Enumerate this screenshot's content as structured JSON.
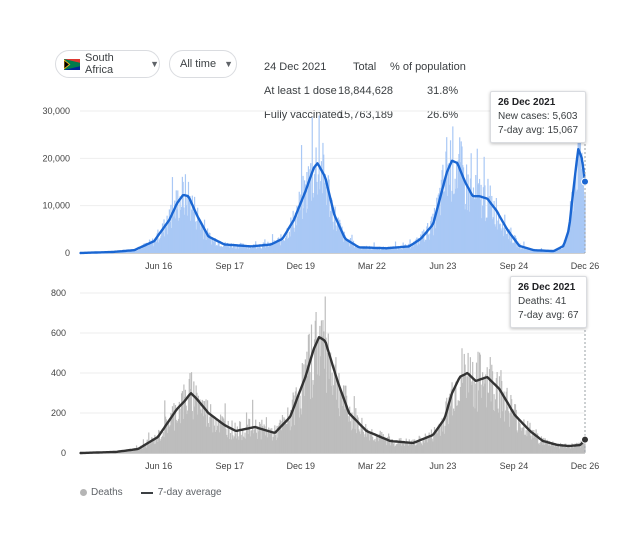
{
  "controls": {
    "country_label": "South Africa",
    "time_label": "All time",
    "flag_icon": "south-africa-flag-icon"
  },
  "stats": {
    "date": "24 Dec 2021",
    "col_total": "Total",
    "col_pct": "% of population",
    "rows": [
      {
        "label": "At least 1 dose",
        "total": "18,844,628",
        "pct": "31.8%"
      },
      {
        "label": "Fully vaccinated",
        "total": "15,763,189",
        "pct": "26.6%"
      }
    ]
  },
  "cases_tooltip": {
    "date": "26 Dec 2021",
    "line1": "New cases: 5,603",
    "line2": "7-day avg: 15,067"
  },
  "deaths_tooltip": {
    "date": "26 Dec 2021",
    "line1": "Deaths: 41",
    "line2": "7-day avg: 67"
  },
  "legend": {
    "deaths": "Deaths",
    "avg": "7-day average"
  },
  "colors": {
    "cases_line": "#1a66d2",
    "cases_fill": "#a9c8f5",
    "deaths_line": "#333333",
    "deaths_bar": "#bdbdbd"
  },
  "chart_data": [
    {
      "type": "area",
      "title": "",
      "xlabel": "",
      "ylabel": "",
      "x_ticks": [
        "Jun 16",
        "Sep 17",
        "Dec 19",
        "Mar 22",
        "Jun 23",
        "Sep 24",
        "Dec 26"
      ],
      "y_ticks": [
        "0",
        "10,000",
        "20,000",
        "30,000"
      ],
      "ylim": [
        0,
        30000
      ],
      "grid": true,
      "series": [
        {
          "name": "7-day avg",
          "x": [
            "2020-03-05",
            "2020-04-15",
            "2020-05-15",
            "2020-06-10",
            "2020-06-30",
            "2020-07-10",
            "2020-07-18",
            "2020-07-25",
            "2020-08-05",
            "2020-08-20",
            "2020-09-10",
            "2020-10-15",
            "2020-11-10",
            "2020-11-25",
            "2020-12-10",
            "2020-12-25",
            "2021-01-05",
            "2021-01-10",
            "2021-01-20",
            "2021-02-01",
            "2021-02-15",
            "2021-03-05",
            "2021-04-10",
            "2021-05-10",
            "2021-05-25",
            "2021-06-10",
            "2021-06-20",
            "2021-06-28",
            "2021-07-05",
            "2021-07-12",
            "2021-07-22",
            "2021-08-01",
            "2021-08-10",
            "2021-08-20",
            "2021-09-01",
            "2021-09-15",
            "2021-10-01",
            "2021-10-20",
            "2021-11-15",
            "2021-11-28",
            "2021-12-05",
            "2021-12-12",
            "2021-12-17",
            "2021-12-22",
            "2021-12-26"
          ],
          "y": [
            0,
            200,
            600,
            2500,
            7000,
            10500,
            12300,
            12000,
            8000,
            3500,
            1800,
            1400,
            1800,
            3000,
            7000,
            13000,
            18000,
            19000,
            16000,
            8000,
            3000,
            1200,
            1000,
            1400,
            3000,
            6000,
            12000,
            17000,
            19500,
            19000,
            15000,
            12000,
            12000,
            11500,
            9000,
            5000,
            1500,
            600,
            400,
            1500,
            5000,
            15000,
            22000,
            20000,
            15067
          ]
        }
      ],
      "daily_cases_latest": 5603
    },
    {
      "type": "bar",
      "title": "",
      "xlabel": "",
      "ylabel": "",
      "x_ticks": [
        "Jun 16",
        "Sep 17",
        "Dec 19",
        "Mar 22",
        "Jun 23",
        "Sep 24",
        "Dec 26"
      ],
      "y_ticks": [
        "0",
        "200",
        "400",
        "600",
        "800"
      ],
      "ylim": [
        0,
        800
      ],
      "grid": true,
      "series": [
        {
          "name": "7-day average",
          "x": [
            "2020-03-05",
            "2020-04-20",
            "2020-05-20",
            "2020-06-15",
            "2020-07-10",
            "2020-07-20",
            "2020-07-28",
            "2020-08-05",
            "2020-08-20",
            "2020-09-10",
            "2020-09-25",
            "2020-10-20",
            "2020-11-15",
            "2020-12-05",
            "2020-12-25",
            "2021-01-05",
            "2021-01-12",
            "2021-01-20",
            "2021-02-05",
            "2021-02-20",
            "2021-03-15",
            "2021-04-15",
            "2021-05-15",
            "2021-06-10",
            "2021-06-25",
            "2021-07-05",
            "2021-07-15",
            "2021-07-25",
            "2021-08-05",
            "2021-08-20",
            "2021-09-05",
            "2021-09-25",
            "2021-10-15",
            "2021-11-01",
            "2021-11-20",
            "2021-12-05",
            "2021-12-20",
            "2021-12-26"
          ],
          "y": [
            0,
            5,
            20,
            80,
            220,
            260,
            300,
            270,
            200,
            140,
            110,
            130,
            100,
            180,
            380,
            520,
            580,
            560,
            360,
            200,
            110,
            60,
            50,
            90,
            170,
            300,
            380,
            400,
            360,
            380,
            320,
            190,
            110,
            60,
            40,
            35,
            40,
            67
          ]
        }
      ],
      "deaths_latest": 41,
      "legend_position": "bottom-left"
    }
  ]
}
